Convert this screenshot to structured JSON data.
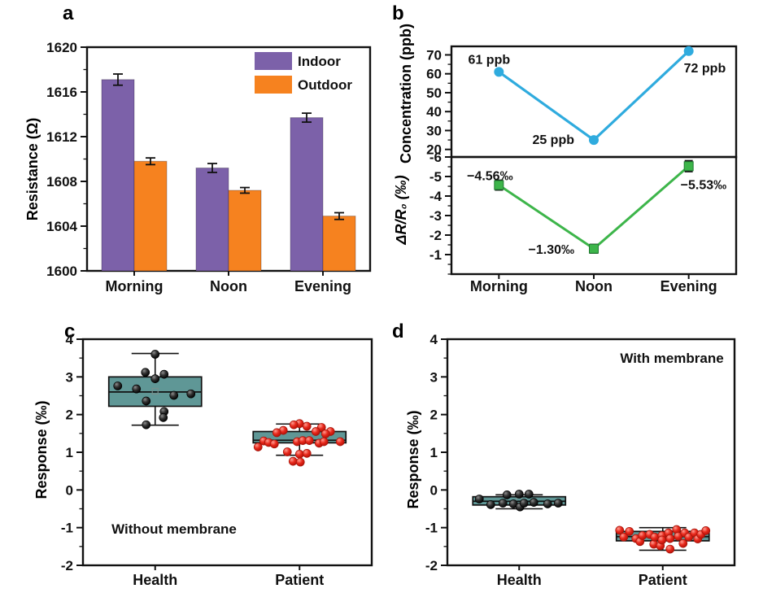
{
  "figure": {
    "background": "#ffffff",
    "panels": {
      "a": {
        "label": "a"
      },
      "b": {
        "label": "b"
      },
      "c": {
        "label": "c"
      },
      "d": {
        "label": "d"
      }
    }
  },
  "chart_data": [
    {
      "panel": "a",
      "type": "bar",
      "ylabel": "Resistance (Ω)",
      "categories": [
        "Morning",
        "Noon",
        "Evening"
      ],
      "ylim": [
        1600,
        1620
      ],
      "yticks": [
        1600,
        1604,
        1608,
        1612,
        1616,
        1620
      ],
      "minor_step": 2,
      "legend_position": "top-right",
      "series": [
        {
          "name": "Indoor",
          "color": "#7c61a9",
          "values": [
            1617.1,
            1609.2,
            1613.7
          ],
          "errors": [
            0.5,
            0.4,
            0.4
          ]
        },
        {
          "name": "Outdoor",
          "color": "#f6821f",
          "values": [
            1609.8,
            1607.2,
            1604.9
          ],
          "errors": [
            0.3,
            0.25,
            0.3
          ]
        }
      ]
    },
    {
      "panel": "b",
      "type": "line-dual",
      "categories": [
        "Morning",
        "Noon",
        "Evening"
      ],
      "subplots": [
        {
          "ylabel": "Concentration (ppb)",
          "series_color": "#2fabde",
          "marker": "circle",
          "values": [
            61,
            25,
            72
          ],
          "point_labels": [
            "61 ppb",
            "25 ppb",
            "72 ppb"
          ],
          "ylim": [
            16,
            74.5
          ],
          "yticks": [
            20,
            30,
            40,
            50,
            60,
            70
          ],
          "minor_step": 5,
          "inverted": false
        },
        {
          "ylabel": "ΔR/R₀ (‰)",
          "series_color": "#3db54a",
          "marker": "square",
          "values": [
            -4.56,
            -1.3,
            -5.53
          ],
          "errors": [
            0.25,
            0.22,
            0.28
          ],
          "point_labels": [
            "−4.56‰",
            "−1.30‰",
            "−5.53‰"
          ],
          "ylim": [
            -6,
            0
          ],
          "yticks": [
            -6,
            -5,
            -4,
            -3,
            -2,
            -1
          ],
          "minor_step": 0.5,
          "inverted": true
        }
      ]
    },
    {
      "panel": "c",
      "type": "box",
      "ylabel": "Response (‰)",
      "annotation": {
        "text": "Without membrane",
        "position": "bottom-left"
      },
      "categories": [
        "Health",
        "Patient"
      ],
      "ylim": [
        -2,
        4
      ],
      "yticks": [
        -2,
        -1,
        0,
        1,
        2,
        3,
        4
      ],
      "minor_step": 0.5,
      "box_fill": "#5f9796",
      "boxes": [
        {
          "category": "Health",
          "point_style": "black",
          "q1": 2.22,
          "median": 2.6,
          "q3": 3.0,
          "mean": 2.62,
          "whisker_low": 1.72,
          "whisker_high": 3.62,
          "points": [
            [
              0,
              3.6
            ],
            [
              -12,
              3.12
            ],
            [
              11,
              3.07
            ],
            [
              0,
              2.95
            ],
            [
              -46,
              2.76
            ],
            [
              -23,
              2.68
            ],
            [
              44,
              2.55
            ],
            [
              23,
              2.51
            ],
            [
              -11,
              2.36
            ],
            [
              11,
              2.08
            ],
            [
              10,
              1.92
            ],
            [
              -11,
              1.73
            ]
          ]
        },
        {
          "category": "Patient",
          "point_style": "red",
          "q1": 1.25,
          "median": 1.32,
          "q3": 1.55,
          "mean": 1.35,
          "whisker_low": 0.92,
          "whisker_high": 1.75,
          "points": [
            [
              0,
              1.76
            ],
            [
              -7,
              1.73
            ],
            [
              9,
              1.69
            ],
            [
              27,
              1.66
            ],
            [
              -20,
              1.58
            ],
            [
              20,
              1.55
            ],
            [
              38,
              1.55
            ],
            [
              -28,
              1.52
            ],
            [
              32,
              1.49
            ],
            [
              -44,
              1.3
            ],
            [
              -38,
              1.26
            ],
            [
              -31,
              1.22
            ],
            [
              -3,
              1.28
            ],
            [
              4,
              1.31
            ],
            [
              12,
              1.31
            ],
            [
              24,
              1.24
            ],
            [
              30,
              1.28
            ],
            [
              50,
              1.28
            ],
            [
              -51,
              1.14
            ],
            [
              -15,
              1.01
            ],
            [
              0,
              0.95
            ],
            [
              9,
              0.97
            ],
            [
              -8,
              0.76
            ],
            [
              1,
              0.74
            ]
          ]
        }
      ]
    },
    {
      "panel": "d",
      "type": "box",
      "ylabel": "Response (‰)",
      "annotation": {
        "text": "With membrane",
        "position": "top-right"
      },
      "categories": [
        "Health",
        "Patient"
      ],
      "ylim": [
        -2,
        4
      ],
      "yticks": [
        -2,
        -1,
        0,
        1,
        2,
        3,
        4
      ],
      "minor_step": 0.5,
      "box_fill": "#5f9796",
      "boxes": [
        {
          "category": "Health",
          "point_style": "black",
          "q1": -0.4,
          "median": -0.3,
          "q3": -0.18,
          "mean": -0.29,
          "whisker_low": -0.5,
          "whisker_high": -0.13,
          "points": [
            [
              -49,
              -0.24
            ],
            [
              -35,
              -0.39
            ],
            [
              -20,
              -0.35
            ],
            [
              -15,
              -0.13
            ],
            [
              -7,
              -0.37
            ],
            [
              0,
              -0.11
            ],
            [
              1,
              -0.45
            ],
            [
              6,
              -0.35
            ],
            [
              12,
              -0.11
            ],
            [
              18,
              -0.33
            ],
            [
              35,
              -0.37
            ],
            [
              48,
              -0.35
            ]
          ]
        },
        {
          "category": "Patient",
          "point_style": "red",
          "q1": -1.35,
          "median": -1.24,
          "q3": -1.1,
          "mean": -1.23,
          "whisker_low": -1.6,
          "whisker_high": -1.0,
          "points": [
            [
              -53,
              -1.07
            ],
            [
              -48,
              -1.25
            ],
            [
              -41,
              -1.1
            ],
            [
              -33,
              -1.29
            ],
            [
              -28,
              -1.37
            ],
            [
              -25,
              -1.21
            ],
            [
              -16,
              -1.18
            ],
            [
              -11,
              -1.44
            ],
            [
              -10,
              -1.25
            ],
            [
              -3,
              -1.48
            ],
            [
              -1,
              -1.21
            ],
            [
              -1,
              -1.33
            ],
            [
              7,
              -1.14
            ],
            [
              9,
              -1.29
            ],
            [
              9,
              -1.57
            ],
            [
              17,
              -1.05
            ],
            [
              19,
              -1.23
            ],
            [
              25,
              -1.42
            ],
            [
              27,
              -1.14
            ],
            [
              32,
              -1.25
            ],
            [
              39,
              -1.14
            ],
            [
              43,
              -1.3
            ],
            [
              47,
              -1.18
            ],
            [
              53,
              -1.08
            ]
          ]
        }
      ]
    }
  ],
  "colors": {
    "indoor": "#7c61a9",
    "outdoor": "#f6821f",
    "concentration_line": "#2fabde",
    "response_line": "#3db54a",
    "box_fill": "#5f9796",
    "patient_points": "#e8291c",
    "health_points": "#111111",
    "ink": "#111111"
  }
}
